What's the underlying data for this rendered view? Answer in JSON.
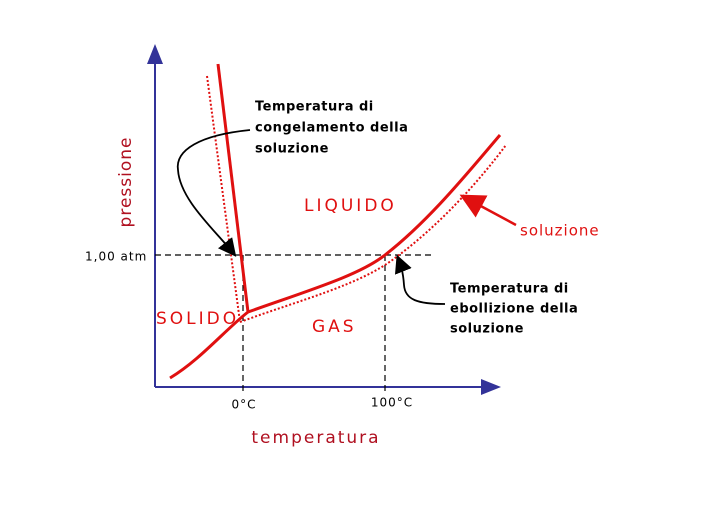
{
  "axes": {
    "x_label": "temperatura",
    "y_label": "pressione"
  },
  "ticks": {
    "pressure": "1,00 atm",
    "freezing": "0°C",
    "boiling": "100°C"
  },
  "regions": {
    "solid": "SOLIDO",
    "liquid": "LIQUIDO",
    "gas": "GAS"
  },
  "annotations": {
    "freezing": [
      "Temperatura di",
      "congelamento della",
      "soluzione"
    ],
    "boiling": [
      "Temperatura di",
      "ebollizione della",
      "soluzione"
    ],
    "solution": "soluzione"
  }
}
